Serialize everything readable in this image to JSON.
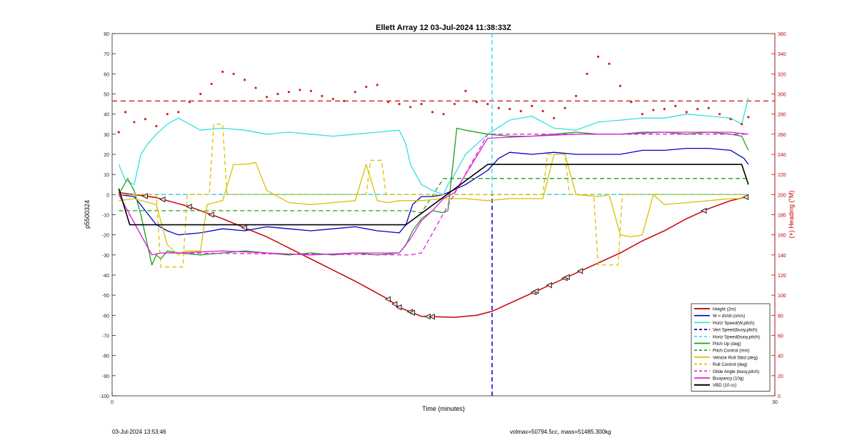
{
  "chart_data": {
    "type": "line",
    "title": "Ellett Array 12 03-Jul-2024 11:38:33Z",
    "xlabel": "Time (minutes)",
    "ylabel": "p5500324",
    "ylabel_right": "(+) Heading (°M)",
    "xlim": [
      0,
      30
    ],
    "ylim": [
      -100,
      80
    ],
    "ylim_right": [
      0,
      360
    ],
    "x_ticks": [
      0,
      30
    ],
    "y_ticks": [
      -100,
      -90,
      -80,
      -70,
      -60,
      -50,
      -40,
      -30,
      -20,
      -10,
      0,
      10,
      20,
      30,
      40,
      50,
      60,
      70,
      80
    ],
    "y_ticks_right": [
      0,
      20,
      40,
      60,
      80,
      100,
      120,
      140,
      160,
      180,
      200,
      220,
      240,
      260,
      280,
      300,
      320,
      340,
      360
    ],
    "grid": false,
    "legend_position": "bottom-right",
    "vertical_lines": [
      {
        "x": 17.2,
        "color": "#0000cc",
        "style": "dashed",
        "ylim": [
          -100,
          0
        ]
      },
      {
        "x": 17.2,
        "color": "#33e0e0",
        "style": "dashed",
        "ylim": [
          0,
          80
        ]
      }
    ],
    "series": [
      {
        "name": "Height (2m)",
        "color": "#cc1111",
        "style": "solid",
        "width": 1.6,
        "x": [
          0.3,
          1.0,
          2.0,
          3.5,
          5.0,
          7.0,
          9.0,
          11.0,
          12.5,
          13.0,
          14.0,
          15.5,
          16.5,
          17.2,
          18.0,
          19.0,
          20.0,
          21.0,
          22.0,
          23.0,
          24.0,
          25.0,
          26.0,
          27.0,
          28.0,
          28.8
        ],
        "y": [
          1,
          0,
          -1.5,
          -6,
          -12,
          -21,
          -32,
          -43,
          -52,
          -56,
          -60.5,
          -61,
          -60,
          -58,
          -54,
          -49,
          -44,
          -39,
          -34,
          -29,
          -23,
          -18,
          -12,
          -7,
          -3,
          -1
        ]
      },
      {
        "name": "W = dz/dt (cm/s)",
        "color": "#0000c8",
        "style": "solid",
        "width": 1.3,
        "x": [
          0.3,
          1.0,
          1.5,
          2.0,
          2.5,
          3.0,
          4.0,
          5.0,
          6.0,
          7.0,
          8.0,
          9.0,
          10.0,
          11.0,
          12.0,
          13.0,
          13.3,
          13.6,
          14.0,
          14.5,
          15.0,
          16.0,
          17.0,
          17.5,
          18.0,
          19.0,
          20.0,
          21.0,
          22.0,
          23.0,
          24.0,
          25.0,
          26.0,
          27.0,
          28.0,
          28.6,
          28.8
        ],
        "y": [
          0,
          -1,
          -8,
          -15,
          -18,
          -20,
          -19,
          -17,
          -18,
          -16,
          -17,
          -18,
          -17,
          -16,
          -18,
          -19,
          -15,
          -5,
          -1,
          -1,
          0,
          5,
          12,
          18,
          21,
          20,
          21,
          20,
          20,
          20,
          22,
          22,
          23,
          23,
          22,
          18,
          15
        ]
      },
      {
        "name": "Horiz Speed(W,pitch)",
        "color": "#33e0e0",
        "style": "solid",
        "width": 1.3,
        "x": [
          0.3,
          0.6,
          1.0,
          1.3,
          1.6,
          2.0,
          2.5,
          3.0,
          4.0,
          5.0,
          6.0,
          7.0,
          8.0,
          9.0,
          10.0,
          11.0,
          12.0,
          13.0,
          13.3,
          13.5,
          14.0,
          14.5,
          15.0,
          15.2,
          15.5,
          16.0,
          17.0,
          18.0,
          19.0,
          20.0,
          21.0,
          22.0,
          23.0,
          24.0,
          25.0,
          26.0,
          27.0,
          28.0,
          28.5,
          28.8
        ],
        "y": [
          15,
          7,
          5,
          20,
          25,
          30,
          35,
          38,
          32,
          33,
          32,
          30,
          31,
          30,
          29,
          30,
          31,
          32,
          25,
          15,
          5,
          2,
          0,
          5,
          10,
          20,
          30,
          37,
          39,
          33,
          32,
          36,
          37,
          38,
          38,
          40,
          39,
          38,
          35,
          48
        ]
      },
      {
        "name": "Vert Speed(buoy,pitch)",
        "color": "#0000cc",
        "style": "dashed",
        "width": 1.3,
        "x": [
          0.3,
          13.5,
          14.0,
          17.2,
          28.8
        ],
        "y": [
          0,
          0,
          0,
          0,
          0
        ]
      },
      {
        "name": "Horiz Speed(buoy,pitch)",
        "color": "#33e0e0",
        "style": "dashed",
        "width": 1.3,
        "x": [
          0.3,
          13.5,
          14.0,
          17.2,
          28.8
        ],
        "y": [
          0,
          0,
          0,
          0,
          0
        ]
      },
      {
        "name": "Pitch Up (deg)",
        "color": "#1aa01a",
        "style": "solid",
        "width": 1.3,
        "x": [
          0.3,
          0.7,
          1.0,
          1.3,
          1.6,
          1.8,
          2.0,
          2.2,
          2.5,
          3.0,
          4.0,
          5.0,
          6.0,
          7.0,
          8.0,
          9.0,
          10.0,
          11.0,
          12.0,
          13.0,
          13.3,
          13.6,
          14.0,
          14.5,
          15.0,
          15.2,
          15.6,
          16.0,
          17.0,
          18.0,
          19.0,
          20.0,
          21.0,
          22.0,
          23.0,
          24.0,
          25.0,
          26.0,
          27.0,
          28.0,
          28.5,
          28.8
        ],
        "y": [
          0,
          8,
          2,
          -10,
          -25,
          -35,
          -30,
          -32,
          -28,
          -29,
          -30,
          -29,
          -28,
          -29,
          -30,
          -29,
          -30,
          -29,
          -30,
          -29,
          -25,
          -18,
          -12,
          -8,
          -9,
          -8,
          33,
          32,
          30,
          29,
          29,
          30,
          31,
          30,
          30,
          31,
          31,
          30,
          31,
          30,
          29,
          22
        ]
      },
      {
        "name": "Pitch Control (mm)",
        "color": "#1aa01a",
        "style": "dashed",
        "width": 1.3,
        "x": [
          0.3,
          1.5,
          2.0,
          13.5,
          14.0,
          15.0,
          16.0,
          17.0,
          28.8
        ],
        "y": [
          -8,
          -8,
          -8,
          -8,
          -9,
          8,
          8,
          8,
          8
        ]
      },
      {
        "name": "Vehicle Roll Stbd (deg)",
        "color": "#dcc000",
        "style": "solid",
        "width": 1.3,
        "x": [
          0.3,
          1.0,
          2.0,
          2.5,
          3.0,
          3.3,
          4.0,
          4.3,
          5.0,
          5.5,
          6.0,
          6.5,
          7.0,
          8.0,
          9.0,
          10.0,
          11.0,
          11.5,
          12.0,
          12.5,
          13.0,
          14.0,
          15.0,
          16.0,
          17.0,
          18.0,
          19.0,
          19.5,
          20.0,
          20.5,
          21.0,
          22.0,
          22.5,
          23.0,
          23.5,
          24.0,
          24.5,
          25.0,
          26.0,
          27.0,
          28.0,
          28.5,
          28.8
        ],
        "y": [
          -3,
          -2,
          -5,
          -25,
          -30,
          -28,
          -28,
          -5,
          -3,
          15,
          15,
          16,
          2,
          -4,
          -5,
          -4,
          -3,
          15,
          -3,
          -4,
          -3,
          -3,
          -2,
          -2,
          -3,
          -2,
          -2,
          -2,
          20,
          20,
          0,
          -1,
          0,
          -20,
          -21,
          -20,
          0,
          -5,
          -4,
          -3,
          -2,
          -2,
          0
        ]
      },
      {
        "name": "Roll Control (deg)",
        "color": "#dcc000",
        "style": "dashed",
        "width": 1.3,
        "x": [
          0.3,
          2.0,
          2.2,
          3.2,
          3.4,
          4.4,
          4.6,
          5.0,
          5.2,
          6.2,
          6.4,
          11.5,
          11.7,
          12.2,
          12.4,
          19.5,
          19.7,
          20.5,
          20.7,
          21.8,
          22.0,
          22.9,
          23.1,
          28.8
        ],
        "y": [
          0,
          0,
          -36,
          -36,
          0,
          0,
          35,
          35,
          0,
          0,
          0,
          0,
          17,
          17,
          0,
          0,
          20,
          20,
          0,
          0,
          -35,
          -35,
          0,
          0
        ]
      },
      {
        "name": "Glide Angle (buoy,pitch)",
        "color": "#dd22dd",
        "style": "dashed",
        "width": 1.3,
        "x": [
          0.3,
          1.8,
          2.2,
          13.5,
          14.0,
          17.0,
          28.8
        ],
        "y": [
          0,
          -30,
          -29,
          -30,
          -29,
          30,
          30
        ]
      },
      {
        "name": "Buoyancy (10g)",
        "color": "#dd22dd",
        "style": "solid",
        "width": 1.3,
        "x": [
          0.3,
          1.8,
          2.2,
          3.0,
          5.0,
          7.0,
          9.0,
          11.0,
          13.0,
          13.5,
          14.0,
          14.5,
          15.0,
          15.5,
          17.0,
          19.0,
          21.0,
          23.0,
          25.0,
          27.0,
          28.0,
          28.8
        ],
        "y": [
          0,
          -30,
          -29,
          -29,
          -28,
          -29,
          -30,
          -29,
          -29,
          -22,
          -13,
          -8,
          -2,
          1,
          28,
          29,
          30,
          30,
          31,
          31,
          31,
          30
        ]
      },
      {
        "name": "VBD (10 cc)",
        "color": "#000000",
        "style": "solid",
        "width": 1.6,
        "x": [
          0.3,
          0.8,
          13.3,
          17.0,
          28.5,
          28.8
        ],
        "y": [
          3,
          -15,
          -15,
          15,
          15,
          5
        ]
      }
    ],
    "heading": {
      "color": "#d42020",
      "style": "dotted",
      "x": [
        0.3,
        0.6,
        1.0,
        1.5,
        2.0,
        2.5,
        3.0,
        3.5,
        4.0,
        4.5,
        5.0,
        5.5,
        6.0,
        6.5,
        7.0,
        7.5,
        8.0,
        8.5,
        9.0,
        9.5,
        10.0,
        10.5,
        11.0,
        11.5,
        12.0,
        12.5,
        13.0,
        13.5,
        14.0,
        14.5,
        15.0,
        15.5,
        16.0,
        16.5,
        17.0,
        17.5,
        18.0,
        18.5,
        19.0,
        19.5,
        20.0,
        20.5,
        21.0,
        21.5,
        22.0,
        22.5,
        23.0,
        23.5,
        24.0,
        24.5,
        25.0,
        25.5,
        26.0,
        26.5,
        27.0,
        27.5,
        28.0,
        28.5,
        28.8
      ],
      "y": [
        262,
        282,
        272,
        275,
        268,
        280,
        282,
        292,
        300,
        310,
        322,
        320,
        314,
        306,
        297,
        300,
        302,
        304,
        303,
        298,
        295,
        293,
        302,
        307,
        309,
        292,
        290,
        287,
        290,
        282,
        280,
        290,
        303,
        292,
        290,
        286,
        285,
        283,
        288,
        283,
        276,
        286,
        298,
        320,
        337,
        330,
        308,
        292,
        280,
        284,
        285,
        288,
        282,
        285,
        286,
        280,
        275,
        270,
        277
      ]
    },
    "heading_reference": {
      "value": 293,
      "color": "#d42020",
      "style": "dashed"
    },
    "markers": {
      "series": "Height (2m)",
      "symbol": "triangle-left",
      "x": [
        1.5,
        2.3,
        3.5,
        4.5,
        6.0,
        12.5,
        12.8,
        13.0,
        13.5,
        13.6,
        14.3,
        14.5,
        19.1,
        19.2,
        19.8,
        20.5,
        20.6,
        21.2,
        26.8,
        28.7
      ]
    }
  },
  "footer": {
    "left": "03-Jul-2024 13:53:46",
    "right": "volmax=50794.5cc, mass=51485.300kg"
  }
}
